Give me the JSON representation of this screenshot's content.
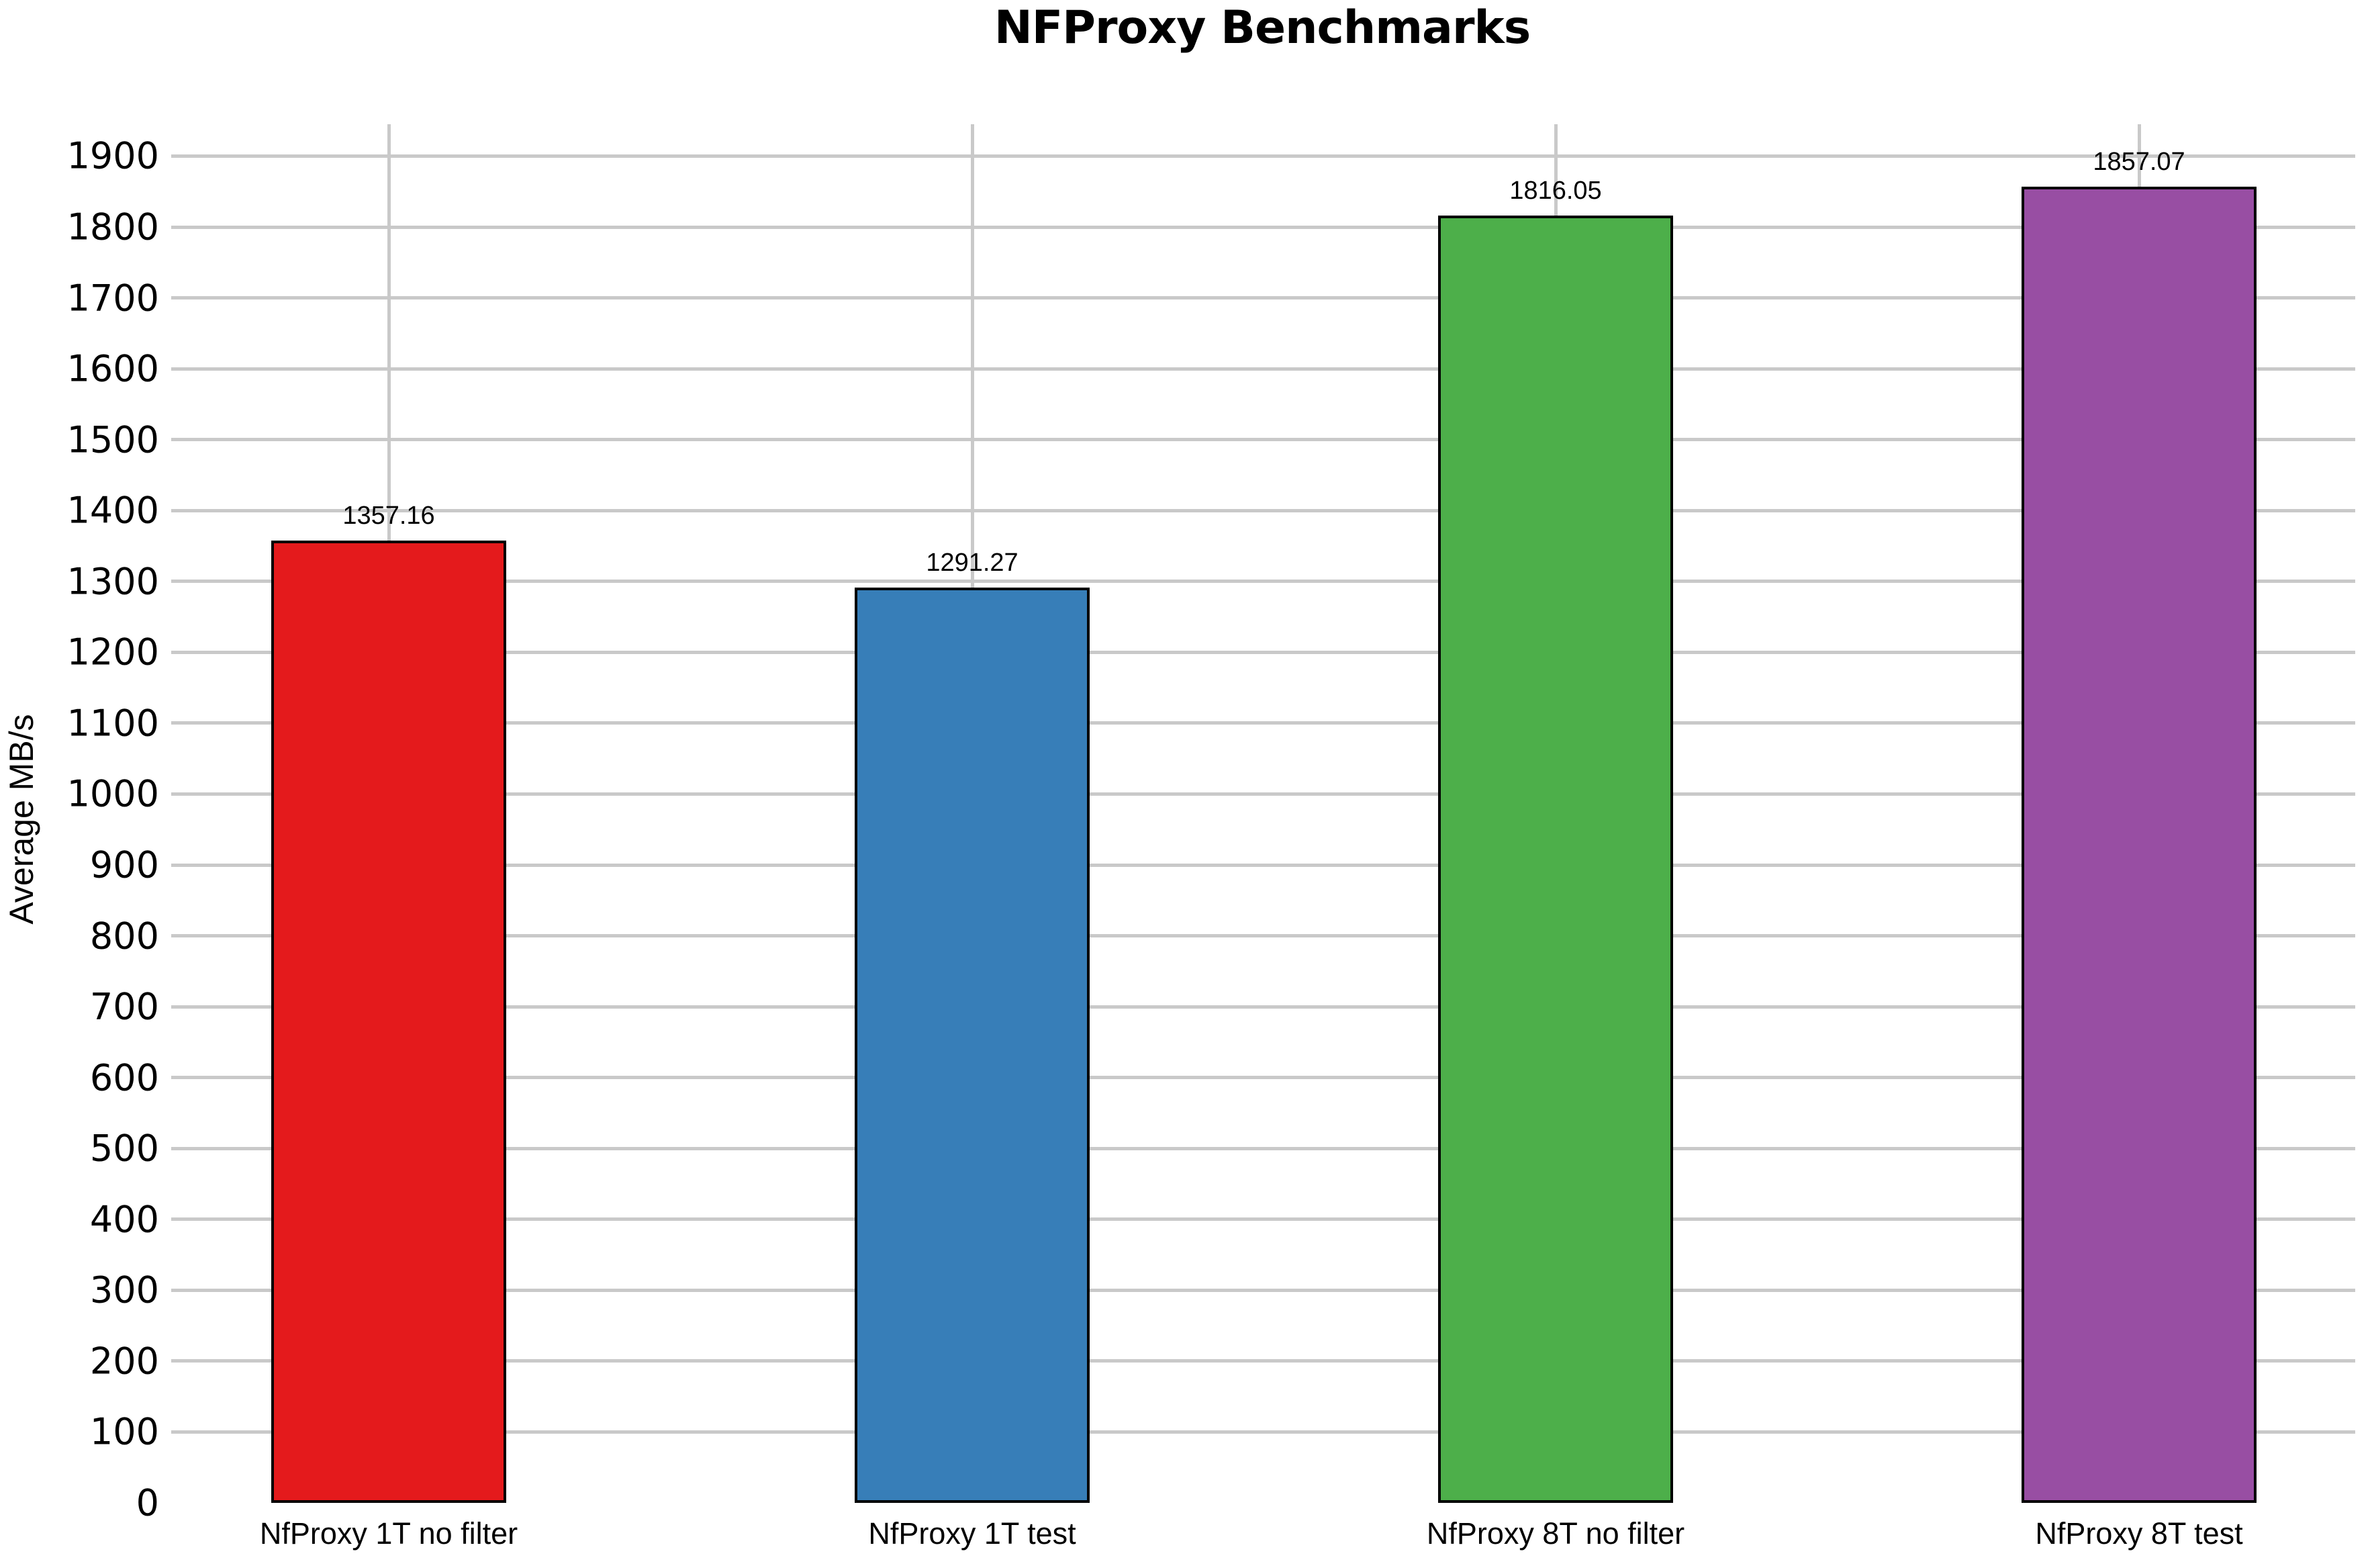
{
  "chart_data": {
    "type": "bar",
    "title": "NFProxy Benchmarks",
    "xlabel": "",
    "ylabel": "Average MB/s",
    "categories": [
      "NfProxy 1T no filter",
      "NfProxy 1T test",
      "NfProxy 8T no filter",
      "NfProxy 8T test"
    ],
    "values": [
      1357.16,
      1291.27,
      1816.05,
      1857.07
    ],
    "value_labels": [
      "1357.16",
      "1291.27",
      "1816.05",
      "1857.07"
    ],
    "bar_colors": [
      "#e41a1c",
      "#377eb8",
      "#4daf4a",
      "#984ea3"
    ],
    "bar_border_color": "#000000",
    "ylim": [
      0,
      1945
    ],
    "yticks": [
      0,
      100,
      200,
      300,
      400,
      500,
      600,
      700,
      800,
      900,
      1000,
      1100,
      1200,
      1300,
      1400,
      1500,
      1600,
      1700,
      1800,
      1900
    ],
    "grid": true,
    "grid_color": "#c9c9c9",
    "background_color": "#ffffff",
    "legend_position": "none"
  }
}
